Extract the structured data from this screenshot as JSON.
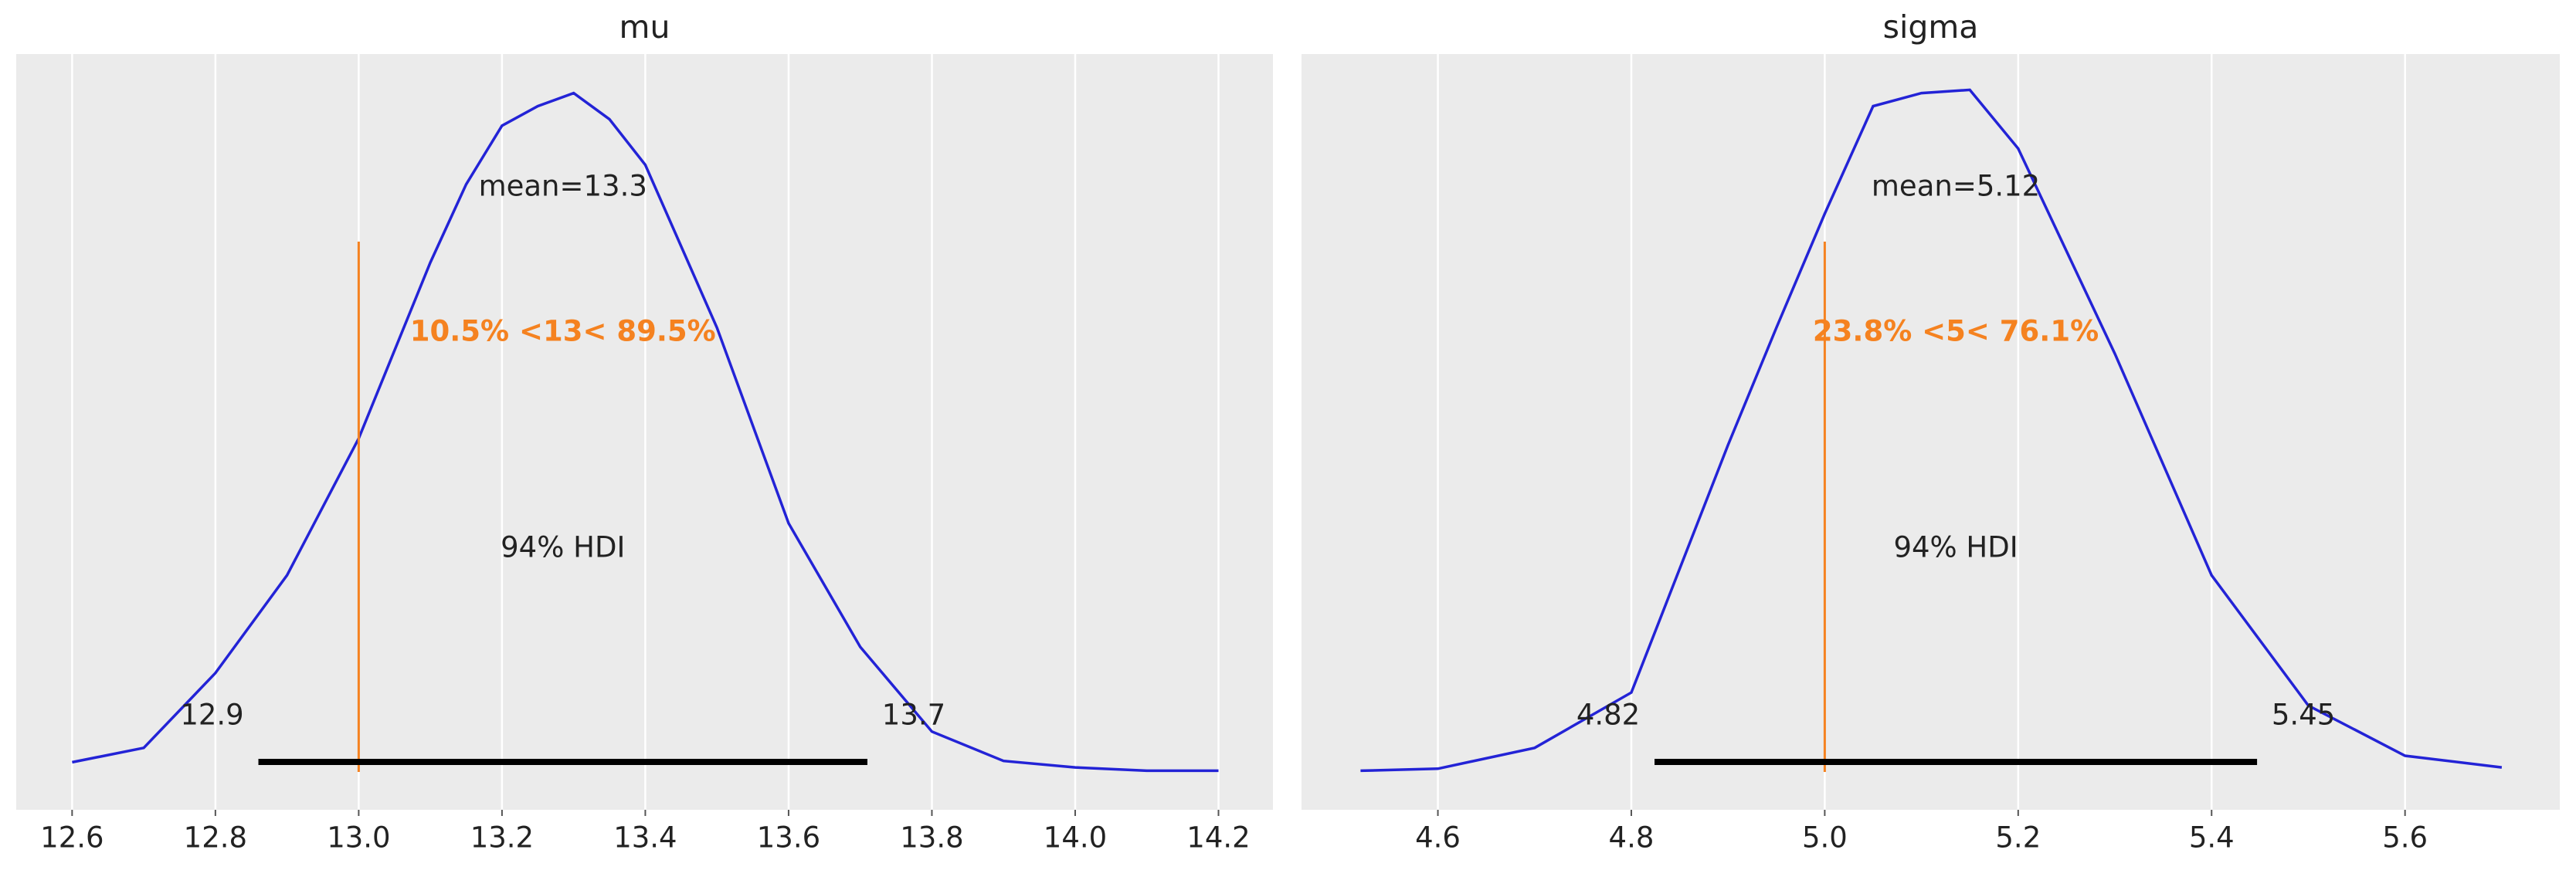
{
  "chart_data": [
    {
      "type": "density",
      "title": "mu",
      "x": [
        12.6,
        12.7,
        12.8,
        12.9,
        13.0,
        13.1,
        13.15,
        13.2,
        13.25,
        13.3,
        13.35,
        13.4,
        13.5,
        13.6,
        13.7,
        13.8,
        13.9,
        14.0,
        14.1,
        14.2
      ],
      "values": [
        0.013,
        0.035,
        0.15,
        0.3,
        0.51,
        0.78,
        0.9,
        0.99,
        1.02,
        1.04,
        1.0,
        0.93,
        0.68,
        0.38,
        0.19,
        0.06,
        0.015,
        0.005,
        0.0,
        0.0
      ],
      "color": "#2323d6",
      "xlim": [
        12.522,
        14.276
      ],
      "ylim": [
        -0.06,
        1.1
      ],
      "xticks": [
        {
          "value": 12.6,
          "label": "12.6"
        },
        {
          "value": 12.8,
          "label": "12.8"
        },
        {
          "value": 13.0,
          "label": "13.0"
        },
        {
          "value": 13.2,
          "label": "13.2"
        },
        {
          "value": 13.4,
          "label": "13.4"
        },
        {
          "value": 13.6,
          "label": "13.6"
        },
        {
          "value": 13.8,
          "label": "13.8"
        },
        {
          "value": 14.0,
          "label": "14.0"
        },
        {
          "value": 14.2,
          "label": "14.2"
        }
      ],
      "grid": true,
      "mean_label": "mean=13.3",
      "ref_val": 13,
      "ref_label": "10.5% <13< 89.5%",
      "ref_color": "#f58220",
      "hdi": [
        12.86,
        13.71
      ],
      "hdi_labels": [
        "12.9",
        "13.7"
      ],
      "hdi_label": "94% HDI"
    },
    {
      "type": "density",
      "title": "sigma",
      "x": [
        4.52,
        4.6,
        4.7,
        4.8,
        4.9,
        4.95,
        5.0,
        5.05,
        5.1,
        5.15,
        5.2,
        5.3,
        5.4,
        5.5,
        5.6,
        5.7
      ],
      "values": [
        0.0,
        0.003,
        0.035,
        0.12,
        0.5,
        0.68,
        0.855,
        1.02,
        1.04,
        1.045,
        0.955,
        0.64,
        0.3,
        0.1,
        0.023,
        0.005
      ],
      "color": "#2323d6",
      "xlim": [
        4.459,
        5.76
      ],
      "ylim": [
        -0.06,
        1.1
      ],
      "xticks": [
        4.6,
        4.8,
        {
          "value": 5.0,
          "label": "5.0"
        },
        5.2,
        5.4,
        5.6
      ],
      "grid": true,
      "mean_label": "mean=5.12",
      "ref_val": 5,
      "ref_label": "23.8% <5< 76.1%",
      "ref_color": "#f58220",
      "hdi": [
        4.824,
        5.447
      ],
      "hdi_labels": [
        "4.82",
        "5.45"
      ],
      "hdi_label": "94% HDI"
    }
  ]
}
